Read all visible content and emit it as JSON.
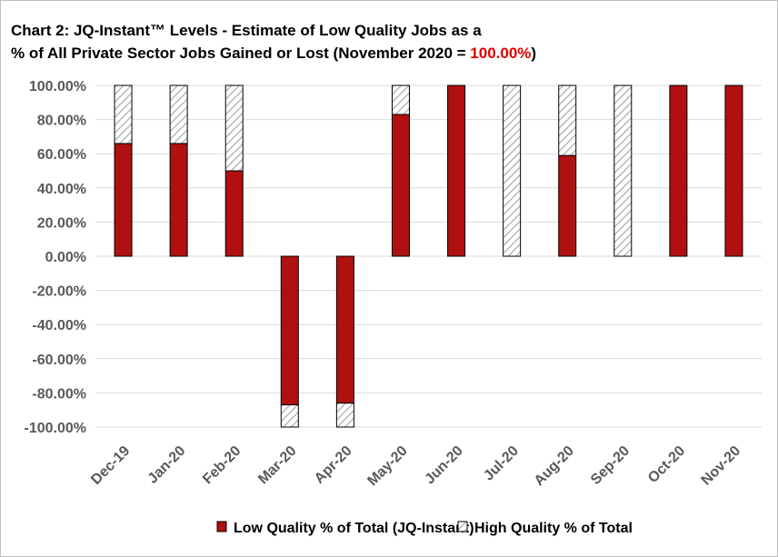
{
  "title": {
    "line1": "Chart 2: JQ-Instant™ Levels - Estimate of Low Quality Jobs as a",
    "line2_prefix": "% of All Private Sector Jobs Gained or Lost (November 2020  = ",
    "line2_value": "100.00%",
    "line2_suffix": ")"
  },
  "colors": {
    "low_quality": "#b01010",
    "high_quality_hatch": "#b8b8b8",
    "gridline": "#d9d9d9",
    "accent_text": "#e00000"
  },
  "chart_data": {
    "type": "bar",
    "stacked": true,
    "categories": [
      "Dec-19",
      "Jan-20",
      "Feb-20",
      "Mar-20",
      "Apr-20",
      "May-20",
      "Jun-20",
      "Jul-20",
      "Aug-20",
      "Sep-20",
      "Oct-20",
      "Nov-20"
    ],
    "series": [
      {
        "name": "Low Quality % of Total (JQ-Instant)",
        "values": [
          66,
          66,
          50,
          -87,
          -86,
          83,
          100,
          0,
          59,
          0,
          100,
          100
        ]
      },
      {
        "name": "High Quality % of Total",
        "values": [
          34,
          34,
          50,
          -13,
          -14,
          17,
          0,
          100,
          41,
          100,
          0,
          0
        ]
      }
    ],
    "ylim": [
      -100,
      100
    ],
    "yticks": [
      "100.00%",
      "80.00%",
      "60.00%",
      "40.00%",
      "20.00%",
      "0.00%",
      "-20.00%",
      "-40.00%",
      "-60.00%",
      "-80.00%",
      "-100.00%"
    ],
    "grid": true,
    "legend": "bottom"
  }
}
